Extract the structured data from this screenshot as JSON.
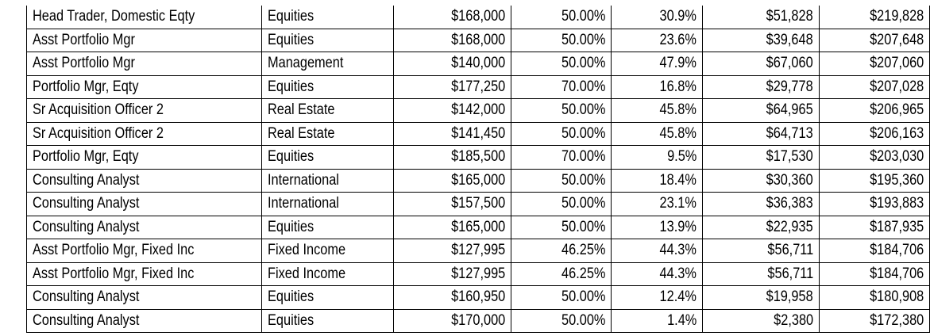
{
  "table": {
    "rows": [
      {
        "title": "Head Trader, Domestic Eqty",
        "dept": "Equities",
        "base": "$168,000",
        "target_pct": "50.00%",
        "actual_pct": "30.9%",
        "bonus": "$51,828",
        "total": "$219,828"
      },
      {
        "title": "Asst Portfolio Mgr",
        "dept": "Equities",
        "base": "$168,000",
        "target_pct": "50.00%",
        "actual_pct": "23.6%",
        "bonus": "$39,648",
        "total": "$207,648"
      },
      {
        "title": "Asst Portfolio Mgr",
        "dept": "Management",
        "base": "$140,000",
        "target_pct": "50.00%",
        "actual_pct": "47.9%",
        "bonus": "$67,060",
        "total": "$207,060"
      },
      {
        "title": "Portfolio Mgr, Eqty",
        "dept": "Equities",
        "base": "$177,250",
        "target_pct": "70.00%",
        "actual_pct": "16.8%",
        "bonus": "$29,778",
        "total": "$207,028"
      },
      {
        "title": "Sr Acquisition Officer 2",
        "dept": "Real Estate",
        "base": "$142,000",
        "target_pct": "50.00%",
        "actual_pct": "45.8%",
        "bonus": "$64,965",
        "total": "$206,965"
      },
      {
        "title": "Sr Acquisition Officer 2",
        "dept": "Real Estate",
        "base": "$141,450",
        "target_pct": "50.00%",
        "actual_pct": "45.8%",
        "bonus": "$64,713",
        "total": "$206,163"
      },
      {
        "title": "Portfolio Mgr, Eqty",
        "dept": "Equities",
        "base": "$185,500",
        "target_pct": "70.00%",
        "actual_pct": "9.5%",
        "bonus": "$17,530",
        "total": "$203,030"
      },
      {
        "title": "Consulting Analyst",
        "dept": "International",
        "base": "$165,000",
        "target_pct": "50.00%",
        "actual_pct": "18.4%",
        "bonus": "$30,360",
        "total": "$195,360"
      },
      {
        "title": "Consulting Analyst",
        "dept": "International",
        "base": "$157,500",
        "target_pct": "50.00%",
        "actual_pct": "23.1%",
        "bonus": "$36,383",
        "total": "$193,883"
      },
      {
        "title": "Consulting Analyst",
        "dept": "Equities",
        "base": "$165,000",
        "target_pct": "50.00%",
        "actual_pct": "13.9%",
        "bonus": "$22,935",
        "total": "$187,935"
      },
      {
        "title": "Asst Portfolio Mgr, Fixed Inc",
        "dept": "Fixed Income",
        "base": "$127,995",
        "target_pct": "46.25%",
        "actual_pct": "44.3%",
        "bonus": "$56,711",
        "total": "$184,706"
      },
      {
        "title": "Asst Portfolio Mgr, Fixed Inc",
        "dept": "Fixed Income",
        "base": "$127,995",
        "target_pct": "46.25%",
        "actual_pct": "44.3%",
        "bonus": "$56,711",
        "total": "$184,706"
      },
      {
        "title": "Consulting Analyst",
        "dept": "Equities",
        "base": "$160,950",
        "target_pct": "50.00%",
        "actual_pct": "12.4%",
        "bonus": "$19,958",
        "total": "$180,908"
      },
      {
        "title": "Consulting Analyst",
        "dept": "Equities",
        "base": "$170,000",
        "target_pct": "50.00%",
        "actual_pct": "1.4%",
        "bonus": "$2,380",
        "total": "$172,380"
      }
    ]
  }
}
